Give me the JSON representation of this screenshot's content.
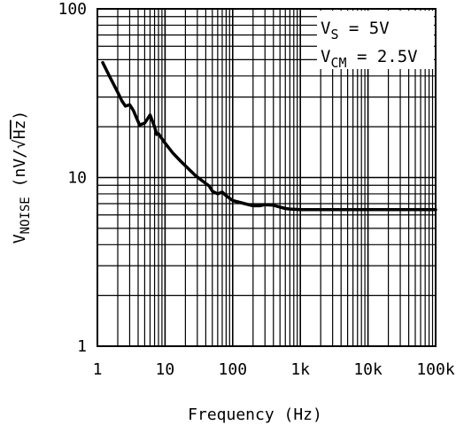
{
  "chart_data": {
    "type": "line",
    "xscale": "log",
    "yscale": "log",
    "xlim": [
      1,
      100000
    ],
    "ylim": [
      1,
      100
    ],
    "grid": true,
    "xlabel": "Frequency (Hz)",
    "ylabel": {
      "main": "V",
      "subscript": "NOISE",
      "units_prefix": " (nV/",
      "radical_arg": "Hz",
      "units_suffix": ")"
    },
    "xtick_labels": [
      {
        "value": 1,
        "label": "1"
      },
      {
        "value": 10,
        "label": "10"
      },
      {
        "value": 100,
        "label": "100"
      },
      {
        "value": 1000,
        "label": "1k"
      },
      {
        "value": 10000,
        "label": "10k"
      },
      {
        "value": 100000,
        "label": "100k"
      }
    ],
    "ytick_labels": [
      {
        "value": 1,
        "label": "1"
      },
      {
        "value": 10,
        "label": "10"
      },
      {
        "value": 100,
        "label": "100"
      }
    ],
    "annotations": [
      {
        "main": "V",
        "subscript": "S",
        "rest": " = 5V"
      },
      {
        "main": "V",
        "subscript": "CM",
        "rest": " = 2.5V"
      }
    ],
    "series": [
      {
        "x": [
          1.2,
          1.5,
          2,
          2.3,
          2.6,
          3,
          3.4,
          3.8,
          4.2,
          5,
          6,
          7,
          7.5,
          8,
          9,
          10,
          13,
          17,
          22,
          28,
          35,
          45,
          50,
          60,
          70,
          80,
          100,
          150,
          200,
          250,
          300,
          400,
          600,
          700,
          1000,
          5000,
          100000
        ],
        "y": [
          48,
          40,
          32,
          28.5,
          26.5,
          27,
          25,
          22.5,
          20.5,
          21,
          23.5,
          20,
          18,
          18.2,
          17,
          16,
          14,
          12.5,
          11.3,
          10.3,
          9.6,
          8.9,
          8.3,
          8.0,
          8.2,
          7.8,
          7.3,
          7.0,
          6.8,
          6.8,
          6.9,
          6.85,
          6.55,
          6.5,
          6.45,
          6.45,
          6.45
        ]
      }
    ]
  }
}
